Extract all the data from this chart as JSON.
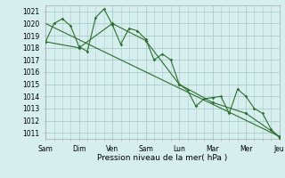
{
  "background_color": "#d6eeee",
  "grid_color": "#aacccc",
  "line_color": "#2d6e2d",
  "xlabel": "Pression niveau de la mer( hPa )",
  "ylim": [
    1010.5,
    1021.5
  ],
  "yticks": [
    1011,
    1012,
    1013,
    1014,
    1015,
    1016,
    1017,
    1018,
    1019,
    1020,
    1021
  ],
  "day_labels": [
    "Sam",
    "Dim",
    "Ven",
    "Sam",
    "Lun",
    "Mar",
    "Mer",
    "Jeu"
  ],
  "day_positions": [
    0,
    4,
    8,
    12,
    16,
    20,
    24,
    28
  ],
  "series1_x": [
    0,
    1,
    2,
    3,
    4,
    5,
    6,
    7,
    8,
    9,
    10,
    11,
    12,
    13,
    14,
    15,
    16,
    17,
    18,
    19,
    20,
    21,
    22,
    23,
    24,
    25,
    26,
    27,
    28
  ],
  "series1_y": [
    1018.5,
    1020.0,
    1020.4,
    1019.8,
    1018.1,
    1017.7,
    1020.5,
    1021.2,
    1019.9,
    1018.3,
    1019.6,
    1019.4,
    1018.7,
    1017.0,
    1017.5,
    1017.0,
    1015.0,
    1014.5,
    1013.2,
    1013.8,
    1013.9,
    1014.0,
    1012.6,
    1014.6,
    1014.0,
    1013.0,
    1012.6,
    1011.3,
    1010.6
  ],
  "series2_x": [
    0,
    4,
    8,
    12,
    16,
    20,
    24,
    28
  ],
  "series2_y": [
    1018.5,
    1018.0,
    1020.0,
    1018.6,
    1015.0,
    1013.5,
    1012.6,
    1010.7
  ],
  "trend_x": [
    0,
    28
  ],
  "trend_y": [
    1020.0,
    1010.7
  ],
  "xlim": [
    0,
    28
  ]
}
